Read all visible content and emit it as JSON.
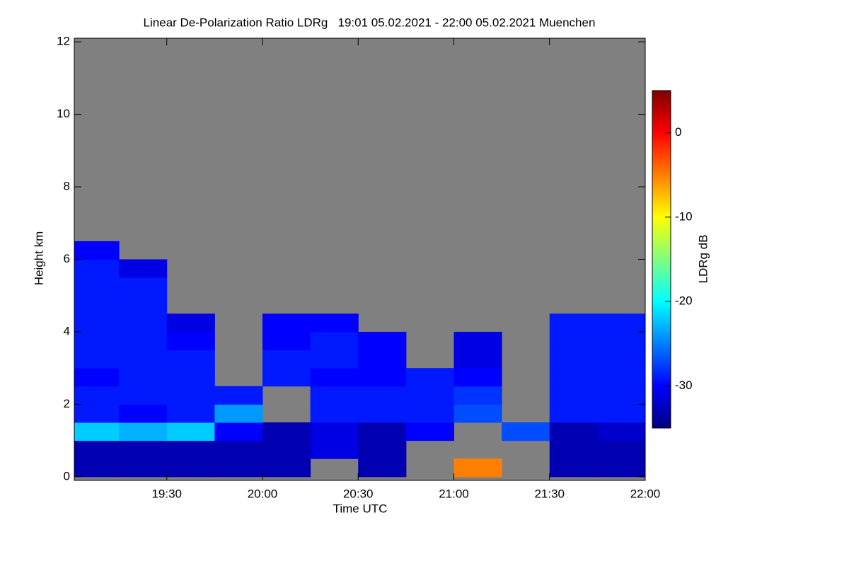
{
  "chart_data": {
    "type": "heatmap",
    "title": "Linear De-Polarization Ratio LDRg   19:01 05.02.2021 - 22:00 05.02.2021 Muenchen",
    "x_label": "Time UTC",
    "y_label": "Height km",
    "colorbar_label": "LDRg dB",
    "x": [
      19.125,
      19.375,
      19.625,
      19.875,
      20.125,
      20.375,
      20.625,
      20.875,
      21.125,
      21.375,
      21.625,
      21.875
    ],
    "y": [
      0.25,
      0.75,
      1.25,
      1.75,
      2.25,
      2.75,
      3.25,
      3.75,
      4.25,
      4.75,
      5.25,
      5.75,
      6.25,
      6.75
    ],
    "z": [
      [
        -33,
        -33,
        -33,
        -33,
        -33,
        null,
        -33,
        null,
        -5,
        null,
        -33,
        -33
      ],
      [
        -33,
        -33,
        -33,
        -33,
        -33,
        -31,
        -33,
        null,
        null,
        null,
        -33,
        -33
      ],
      [
        -22,
        -23,
        -22,
        -30,
        -33,
        -31,
        -33,
        -30,
        null,
        -27,
        -33,
        -32
      ],
      [
        -29,
        -30,
        -29,
        -24,
        null,
        -29,
        -29,
        -29,
        -27,
        null,
        -29,
        -29
      ],
      [
        -29,
        -29,
        -29,
        -29,
        null,
        -29,
        -29,
        -29,
        -28,
        null,
        -29,
        -29
      ],
      [
        -30,
        -29,
        -29,
        null,
        -29,
        -30,
        -30,
        -29,
        -30,
        null,
        -29,
        -29
      ],
      [
        -29,
        -29,
        -29,
        null,
        -29,
        -29,
        -30,
        null,
        -31,
        null,
        -29,
        -29
      ],
      [
        -29,
        -29,
        -30,
        null,
        -30,
        -29,
        -30,
        null,
        -31,
        null,
        -29,
        -29
      ],
      [
        -29,
        -29,
        -31,
        null,
        -30,
        -30,
        null,
        null,
        null,
        null,
        -29,
        -29
      ],
      [
        -29,
        -29,
        null,
        null,
        null,
        null,
        null,
        null,
        null,
        null,
        null,
        null
      ],
      [
        -29,
        -29,
        null,
        null,
        null,
        null,
        null,
        null,
        null,
        null,
        null,
        null
      ],
      [
        -29,
        -31,
        null,
        null,
        null,
        null,
        null,
        null,
        null,
        null,
        null,
        null
      ],
      [
        -30,
        null,
        null,
        null,
        null,
        null,
        null,
        null,
        null,
        null,
        null,
        null
      ],
      [
        null,
        null,
        null,
        null,
        null,
        null,
        null,
        null,
        null,
        null,
        null,
        null
      ]
    ],
    "missing_color": "#808080",
    "colormap": [
      "#00007f",
      "#0000ff",
      "#007fff",
      "#00ffff",
      "#7fff7f",
      "#ffff00",
      "#ff7f00",
      "#ff0000",
      "#7f0000"
    ],
    "xlim": [
      19.0167,
      22
    ],
    "xticks": [
      {
        "value": 19.5,
        "label": "19:30"
      },
      {
        "value": 20,
        "label": "20:00"
      },
      {
        "value": 20.5,
        "label": "20:30"
      },
      {
        "value": 21,
        "label": "21:00"
      },
      {
        "value": 21.5,
        "label": "21:30"
      },
      {
        "value": 22,
        "label": "22:00"
      }
    ],
    "ylim": [
      -0.1,
      12.1
    ],
    "yticks": [
      0,
      2,
      4,
      6,
      8,
      10,
      12
    ],
    "clim": [
      -35,
      5
    ],
    "cticks": [
      0,
      -10,
      -20,
      -30
    ]
  }
}
